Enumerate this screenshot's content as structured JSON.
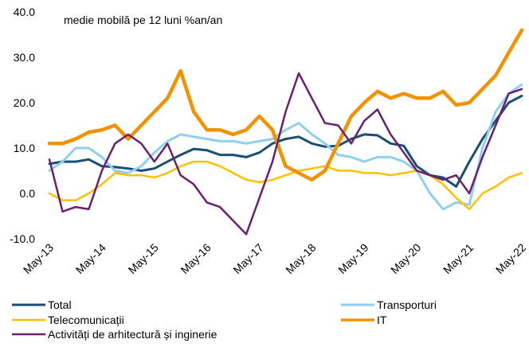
{
  "chart_data": {
    "type": "line",
    "annotation": "medie mobilă pe 12 luni %an/an",
    "categories": [
      "May-13",
      null,
      null,
      null,
      "May-14",
      null,
      null,
      null,
      "May-15",
      null,
      null,
      null,
      "May-16",
      null,
      null,
      null,
      "May-17",
      null,
      null,
      null,
      "May-18",
      null,
      null,
      null,
      "May-19",
      null,
      null,
      null,
      "May-20",
      null,
      null,
      null,
      "May-21",
      null,
      null,
      null,
      "May-22"
    ],
    "series": [
      {
        "name": "Total",
        "color": "#1b4f72",
        "width": 3,
        "values": [
          6.5,
          7,
          7,
          7.5,
          6,
          5.8,
          5.5,
          5,
          5.5,
          7,
          8.5,
          9.8,
          9.5,
          8.5,
          8.5,
          8,
          9,
          11,
          12,
          12.5,
          11,
          10.3,
          10.5,
          12,
          13,
          12.8,
          11,
          10.5,
          6,
          4,
          3.5,
          1.5,
          7,
          12,
          16,
          20,
          21.5
        ]
      },
      {
        "name": "Transporturi",
        "color": "#8fd0ee",
        "width": 3,
        "values": [
          5,
          7,
          10,
          10,
          8,
          5,
          4.5,
          6,
          9,
          11.5,
          13,
          12.5,
          12,
          11.5,
          11.5,
          11,
          11.5,
          12,
          14,
          15.5,
          13,
          11,
          8.5,
          8,
          7,
          8,
          8,
          7,
          5,
          0,
          -3.5,
          -2,
          -2.5,
          10,
          18,
          22,
          24
        ]
      },
      {
        "name": "Telecomunicații",
        "color": "#ffc000",
        "width": 2.5,
        "values": [
          0,
          -1.5,
          -1.5,
          0,
          2,
          4.5,
          4,
          4,
          3.5,
          4.5,
          6,
          7,
          7,
          6,
          4.5,
          3,
          2.5,
          3,
          4,
          5,
          5.5,
          6,
          5,
          5,
          4.5,
          4.5,
          4,
          4.5,
          5,
          4,
          2,
          -1,
          -3.5,
          0,
          1.5,
          3.5,
          4.5
        ]
      },
      {
        "name": "IT",
        "color": "#f39200",
        "width": 4.5,
        "values": [
          11,
          11,
          12,
          13.5,
          14,
          15,
          12,
          15,
          18,
          21,
          27,
          18,
          14,
          14,
          13,
          14,
          17,
          14,
          6,
          4.5,
          3,
          5,
          11,
          17,
          20,
          22.5,
          21,
          22,
          21,
          21,
          22.5,
          19.5,
          20,
          23,
          26,
          31,
          36
        ]
      },
      {
        "name": "Activități de arhitectură și inginerie",
        "color": "#6b1f6f",
        "width": 2.5,
        "values": [
          7.5,
          -4,
          -3,
          -3.5,
          5,
          11,
          13,
          11,
          7,
          11,
          4,
          2,
          -2,
          -3,
          -6,
          -9,
          -1,
          7,
          18,
          26.5,
          21,
          15.5,
          15,
          11,
          16,
          18.5,
          13,
          9,
          5,
          4,
          3,
          4,
          0,
          8,
          15,
          22,
          23
        ]
      }
    ],
    "ylim": [
      -10,
      40
    ],
    "yticks": [
      {
        "value": -10,
        "label": "-10.0"
      },
      {
        "value": 0,
        "label": "0.0"
      },
      {
        "value": 10,
        "label": "10.0"
      },
      {
        "value": 20,
        "label": "20.0"
      },
      {
        "value": 30,
        "label": "30.0"
      },
      {
        "value": 40,
        "label": "40.0"
      }
    ]
  }
}
